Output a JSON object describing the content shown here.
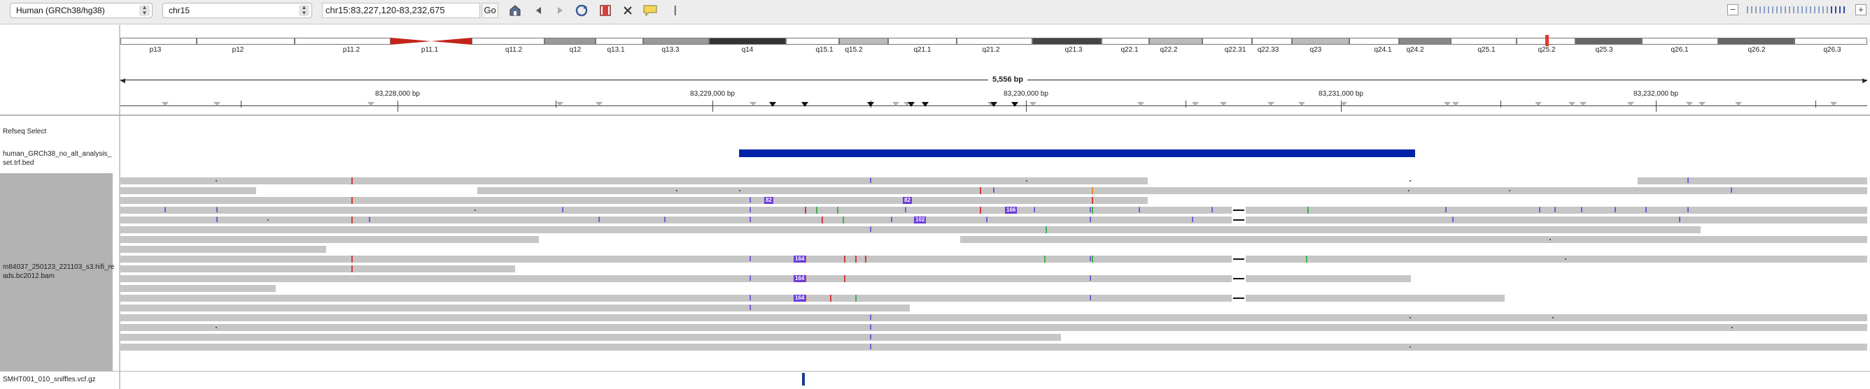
{
  "toolbar": {
    "genome": "Human (GRCh38/hg38)",
    "chromosome": "chr15",
    "locus": "chr15:83,227,120-83,232,675",
    "go_label": "Go",
    "icons": [
      "home-icon",
      "back-icon",
      "forward-icon",
      "refresh-icon",
      "roi-icon",
      "close-icon",
      "popup-text-icon",
      "ruler-line-icon"
    ],
    "zoom_minus": "−",
    "zoom_plus": "+"
  },
  "ideogram": {
    "bands": [
      "p13",
      "p12",
      "p11.2",
      "p11.1",
      "q11.2",
      "q12",
      "q13.1",
      "q13.3",
      "q14",
      "q15.1",
      "q15.2",
      "q21.1",
      "q21.2",
      "q21.3",
      "q22.1",
      "q22.2",
      "q22.31",
      "q22.33",
      "q23",
      "q24.1",
      "q24.2",
      "q25.1",
      "q25.2",
      "q25.3",
      "q26.1",
      "q26.2",
      "q26.3"
    ]
  },
  "ruler": {
    "span": "5,556 bp",
    "ticks": [
      "83,228,000 bp",
      "83,229,000 bp",
      "83,230,000 bp",
      "83,231,000 bp",
      "83,232,000 bp"
    ]
  },
  "tracks": {
    "refseq": "Refseq Select",
    "bed": "human_GRCh38_no_alt_analysis_set.trf.bed",
    "bam": "m84037_250123_221103_s3.hifi_reads.bc2012.bam",
    "vcf": "SMHT001_010_sniffles.vcf.gz"
  },
  "insertion_labels": [
    "82",
    "82",
    "166",
    "102",
    "164",
    "164",
    "164"
  ],
  "colors": {
    "read": "#c6c6c6",
    "insertion": "#6a3ad8",
    "bed_feature": "#0322a8",
    "vcf_variant": "#1a3a8a",
    "centromere": "#c0251b",
    "highlight_band": "#e0352b"
  }
}
